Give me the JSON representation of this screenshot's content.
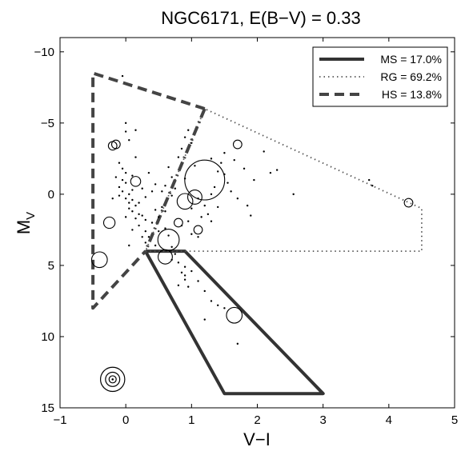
{
  "chart_data": {
    "type": "scatter",
    "title": "NGC6171,  E(B−V) = 0.33",
    "xlabel": "V−I",
    "ylabel_main": "M",
    "ylabel_sub": "V",
    "xlim": [
      -1,
      5
    ],
    "ylim": [
      15,
      -11
    ],
    "y_inverted": true,
    "grid": false,
    "legend_position": "top-right",
    "x_ticks": [
      -1,
      0,
      1,
      2,
      3,
      4,
      5
    ],
    "x_tick_labels": [
      "−1",
      "0",
      "1",
      "2",
      "3",
      "4",
      "5"
    ],
    "y_ticks": [
      -10,
      -5,
      0,
      5,
      10,
      15
    ],
    "y_tick_labels": [
      "−10",
      "−5",
      "0",
      "5",
      "10",
      "15"
    ],
    "regions": [
      {
        "name": "MS = 17.0%",
        "style": "solid",
        "color": "#333333",
        "points": [
          [
            0.3,
            4
          ],
          [
            0.9,
            4
          ],
          [
            3.0,
            14
          ],
          [
            1.5,
            14
          ],
          [
            0.3,
            4
          ]
        ]
      },
      {
        "name": "RG = 69.2%",
        "style": "dotted",
        "color": "#555555",
        "points": [
          [
            0.3,
            4
          ],
          [
            4.5,
            4
          ],
          [
            4.5,
            1
          ],
          [
            1.2,
            -6
          ],
          [
            0.3,
            4
          ]
        ]
      },
      {
        "name": "HS = 13.8%",
        "style": "dashed",
        "color": "#444444",
        "points": [
          [
            1.2,
            -6
          ],
          [
            -0.5,
            -8.5
          ],
          [
            -0.5,
            8
          ],
          [
            0.3,
            4
          ]
        ]
      }
    ],
    "shared_boundary": {
      "style": "dashdot",
      "color": "#444444",
      "points": [
        [
          1.2,
          -6
        ],
        [
          0.3,
          4
        ]
      ]
    },
    "circles": [
      {
        "x": -0.2,
        "y": -3.4,
        "r": 0.3
      },
      {
        "x": -0.15,
        "y": -3.5,
        "r": 0.3
      },
      {
        "x": 0.15,
        "y": -0.9,
        "r": 0.35
      },
      {
        "x": -0.25,
        "y": 2.0,
        "r": 0.4
      },
      {
        "x": -0.4,
        "y": 4.6,
        "r": 0.55
      },
      {
        "x": 1.2,
        "y": -1.0,
        "r": 1.4
      },
      {
        "x": 1.05,
        "y": 0.2,
        "r": 0.5
      },
      {
        "x": 0.9,
        "y": 0.5,
        "r": 0.55
      },
      {
        "x": 0.8,
        "y": 2.0,
        "r": 0.3
      },
      {
        "x": 1.1,
        "y": 2.5,
        "r": 0.3
      },
      {
        "x": 0.65,
        "y": 3.2,
        "r": 0.75
      },
      {
        "x": 0.6,
        "y": 4.4,
        "r": 0.5
      },
      {
        "x": 1.7,
        "y": -3.5,
        "r": 0.3
      },
      {
        "x": 4.3,
        "y": 0.6,
        "r": 0.3
      },
      {
        "x": 1.65,
        "y": 8.5,
        "r": 0.55
      }
    ],
    "dots": [
      [
        -0.05,
        -8.3
      ],
      [
        0.0,
        -5.0
      ],
      [
        0.15,
        -4.5
      ],
      [
        0.05,
        -3.8
      ],
      [
        -0.1,
        -2.2
      ],
      [
        -0.05,
        -1.8
      ],
      [
        0.0,
        -1.5
      ],
      [
        -0.15,
        -1.2
      ],
      [
        -0.05,
        -1.0
      ],
      [
        0.1,
        -1.3
      ],
      [
        0.0,
        -0.8
      ],
      [
        -0.1,
        -0.5
      ],
      [
        -0.05,
        -0.2
      ],
      [
        0.05,
        0.0
      ],
      [
        0.0,
        0.3
      ],
      [
        -0.1,
        0.1
      ],
      [
        0.05,
        0.6
      ],
      [
        0.1,
        0.4
      ],
      [
        0.15,
        0.8
      ],
      [
        0.05,
        1.0
      ],
      [
        0.1,
        1.2
      ],
      [
        0.2,
        1.4
      ],
      [
        0.0,
        1.6
      ],
      [
        0.15,
        1.7
      ],
      [
        0.25,
        1.5
      ],
      [
        0.3,
        1.8
      ],
      [
        0.2,
        2.2
      ],
      [
        0.1,
        2.5
      ],
      [
        0.3,
        2.6
      ],
      [
        0.25,
        3.0
      ],
      [
        0.05,
        3.6
      ],
      [
        0.3,
        3.4
      ],
      [
        0.4,
        2.0
      ],
      [
        0.45,
        1.1
      ],
      [
        0.55,
        0.9
      ],
      [
        0.5,
        1.6
      ],
      [
        0.6,
        2.4
      ],
      [
        0.65,
        2.9
      ],
      [
        0.7,
        3.7
      ],
      [
        0.75,
        4.2
      ],
      [
        0.8,
        4.8
      ],
      [
        0.85,
        5.5
      ],
      [
        0.9,
        6.0
      ],
      [
        0.8,
        6.4
      ],
      [
        0.95,
        6.5
      ],
      [
        1.0,
        5.4
      ],
      [
        0.9,
        5.7
      ],
      [
        1.1,
        6.1
      ],
      [
        1.2,
        6.8
      ],
      [
        1.3,
        7.5
      ],
      [
        1.4,
        7.8
      ],
      [
        1.5,
        8.0
      ],
      [
        1.7,
        10.5
      ],
      [
        1.2,
        8.8
      ],
      [
        0.55,
        -0.2
      ],
      [
        0.6,
        -0.6
      ],
      [
        0.7,
        -1.2
      ],
      [
        0.65,
        -1.9
      ],
      [
        0.8,
        -2.6
      ],
      [
        0.85,
        -3.2
      ],
      [
        0.9,
        -4.0
      ],
      [
        0.95,
        -4.5
      ],
      [
        1.0,
        -3.6
      ],
      [
        1.05,
        -2.0
      ],
      [
        0.9,
        -1.1
      ],
      [
        1.1,
        0.3
      ],
      [
        1.2,
        0.8
      ],
      [
        1.25,
        1.4
      ],
      [
        1.15,
        1.6
      ],
      [
        1.0,
        1.0
      ],
      [
        0.95,
        1.9
      ],
      [
        1.3,
        0.0
      ],
      [
        1.35,
        -0.5
      ],
      [
        1.4,
        -1.6
      ],
      [
        1.45,
        -2.2
      ],
      [
        1.5,
        -1.4
      ],
      [
        1.55,
        -0.8
      ],
      [
        1.6,
        -0.2
      ],
      [
        1.7,
        0.3
      ],
      [
        1.65,
        -2.4
      ],
      [
        1.8,
        -1.8
      ],
      [
        1.85,
        0.8
      ],
      [
        1.9,
        1.5
      ],
      [
        1.95,
        -1.0
      ],
      [
        2.1,
        -3.0
      ],
      [
        2.2,
        -1.5
      ],
      [
        2.3,
        -1.7
      ],
      [
        2.55,
        0.0
      ],
      [
        1.4,
        0.9
      ],
      [
        1.3,
        1.9
      ],
      [
        0.4,
        -0.2
      ],
      [
        0.45,
        -0.7
      ],
      [
        0.35,
        -1.5
      ],
      [
        0.3,
        0.2
      ],
      [
        0.2,
        0.6
      ],
      [
        3.7,
        -1.0
      ],
      [
        3.75,
        -0.6
      ],
      [
        0.7,
        0.1
      ],
      [
        0.75,
        -0.4
      ],
      [
        0.6,
        1.2
      ],
      [
        0.5,
        2.6
      ],
      [
        0.35,
        3.0
      ],
      [
        1.0,
        2.8
      ],
      [
        1.1,
        3.0
      ],
      [
        0.7,
        4.6
      ],
      [
        0.9,
        5.1
      ],
      [
        0.85,
        2.2
      ],
      [
        0.45,
        3.6
      ],
      [
        1.5,
        -2.9
      ],
      [
        1.3,
        -2.5
      ],
      [
        0.0,
        -4.4
      ],
      [
        0.15,
        -2.6
      ],
      [
        0.25,
        -0.4
      ],
      [
        -0.2,
        0.3
      ],
      [
        0.1,
        -0.3
      ]
    ],
    "scale_marker": {
      "x": -0.2,
      "y": 13,
      "radii": [
        0.25,
        0.5,
        0.85
      ]
    }
  }
}
